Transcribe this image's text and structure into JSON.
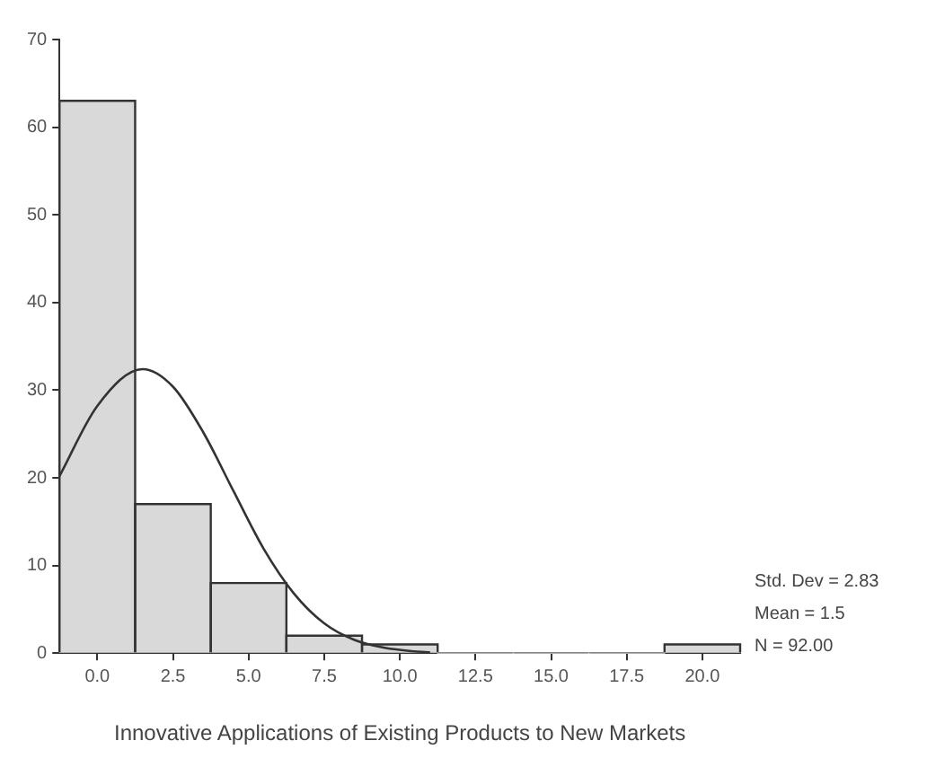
{
  "chart_data": {
    "type": "histogram",
    "xlabel": "Innovative Applications of Existing Products to New Markets",
    "bins": [
      -1.25,
      1.25,
      3.75,
      6.25,
      8.75,
      11.25,
      13.75,
      16.25,
      18.75,
      21.25
    ],
    "values": [
      63,
      17,
      8,
      2,
      1,
      0,
      0,
      0,
      1
    ],
    "color": "#d9d9d9",
    "series": [
      {
        "type": "line",
        "color": "#333333",
        "marker": "none",
        "x": [
          -1.25,
          0,
          1.5,
          2.5,
          3.5,
          4.5,
          5.5,
          6.5,
          7.5,
          8.5,
          9.5,
          10.5,
          11
        ],
        "values": [
          20.2,
          28.2,
          32.4,
          30.4,
          25.2,
          18.5,
          11.9,
          6.8,
          3.4,
          1.5,
          0.6,
          0.2,
          0.1
        ]
      }
    ],
    "xlim": [
      -1.25,
      21.25
    ],
    "xticks": [
      {
        "value": 0,
        "label": "0.0"
      },
      2.5,
      {
        "value": 5,
        "label": "5.0"
      },
      7.5,
      {
        "value": 10,
        "label": "10.0"
      },
      12.5,
      {
        "value": 15,
        "label": "15.0"
      },
      17.5,
      {
        "value": 20,
        "label": "20.0"
      }
    ],
    "ylim": [
      0,
      70
    ],
    "yticks": [
      0,
      10,
      20,
      30,
      40,
      50,
      60,
      70
    ],
    "grid": false,
    "legend": false,
    "annotations": [
      "Std. Dev = 2.83",
      "Mean = 1.5",
      "N = 92.00"
    ]
  }
}
